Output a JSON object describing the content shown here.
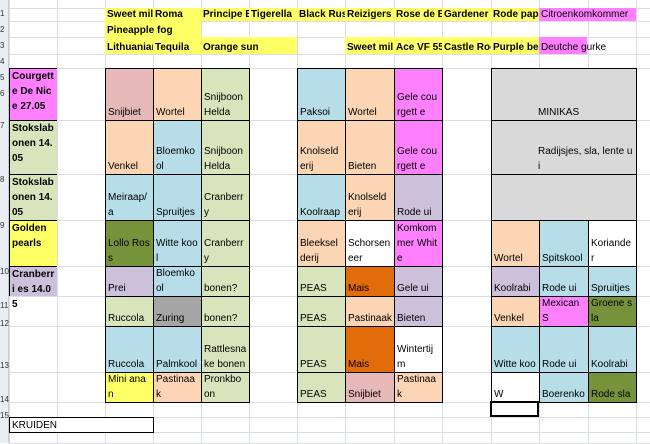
{
  "colors": {
    "yellow": "#ffff66",
    "pink": "#ff80ff",
    "green_light": "#d8e4bc",
    "salmon": "#e6b8b7",
    "peach": "#fcd5b4",
    "blue_light": "#b7dee8",
    "lavender": "#ccc0da",
    "dark_green": "#76933c",
    "gray": "#a6a6a6",
    "orange": "#e26b0a",
    "light_gray": "#d9d9d9",
    "white": "#ffffff"
  },
  "row_numbers": [
    "1",
    "2",
    "3",
    "4",
    "5",
    "6",
    "7",
    "8",
    "9",
    "10",
    "11",
    "12",
    "13",
    "14",
    "15"
  ],
  "header_rows": {
    "row1": [
      "Sweet mil",
      "Roma",
      "Principe B",
      "Tigerella",
      "Black Russ",
      "Reizigers",
      "Rose de B",
      "Gardener",
      "Rode pap",
      "Citroenkomkommer"
    ],
    "row2": [
      "Pineapple fog"
    ],
    "row3": [
      "Lithuaniar",
      "Tequila",
      "Orange sun",
      "Sweet mil",
      "Ace VF 55",
      "Castle Roc",
      "Purple be",
      "Deutche gurke"
    ]
  },
  "left_column": [
    "Courgett e De Nice 27.05",
    "Stokslab onen 14.05",
    "Stokslab onen 14.05",
    "Golden pearls",
    "Cranberri es 14.05"
  ],
  "bed1": [
    [
      "Snijbiet",
      "Wortel",
      "Snijboon Helda"
    ],
    [
      "Venkel",
      "Bloemko ol",
      "Snijboon Helda"
    ],
    [
      "Meiraap/a",
      "Spruitjes",
      "Cranberr y"
    ],
    [
      "Lollo Ross",
      "Witte kool",
      "Cranberr y"
    ],
    [
      "Prei",
      "Bloemko ol",
      "bonen?"
    ],
    [
      "Ruccola",
      "Zuring",
      "bonen?"
    ],
    [
      "Ruccola",
      "Palmkool",
      "Rattlesna ke bonen"
    ],
    [
      "Mini anan",
      "Pastinaak",
      "Pronkbo on"
    ]
  ],
  "bed2": [
    [
      "Paksoi",
      "Wortel",
      "Gele courgett e"
    ],
    [
      "Knolseld erij",
      "Bieten",
      "Gele courgett e"
    ],
    [
      "Koolraap",
      "Knolseld erij",
      "Rode ui"
    ],
    [
      "Bleeksel derij",
      "Schorsen eer",
      "Komkom mer White"
    ],
    [
      "PEAS",
      "Mais",
      "Gele ui"
    ],
    [
      "PEAS",
      "Pastinaak",
      "Bieten"
    ],
    [
      "PEAS",
      "Mais",
      "Wintertij m"
    ],
    [
      "PEAS",
      "Snijbiet",
      "Pastinaak"
    ]
  ],
  "bed3": {
    "minikas": "MINIKAS",
    "radish_row": "Radijsjes, sla, lente ui",
    "rows": [
      [
        "Wortel",
        "Spitskool",
        "Koriander"
      ],
      [
        "Koolrabi",
        "Rode ui",
        "Spruitjes"
      ],
      [
        "Venkel",
        "Mexican S",
        "Groene sla"
      ],
      [
        "Witte koo",
        "Rode ui",
        "Koolrabi"
      ],
      [
        "W",
        "Boerenko",
        "Rode sla"
      ]
    ]
  },
  "footer": {
    "kruiden": "KRUIDEN"
  }
}
